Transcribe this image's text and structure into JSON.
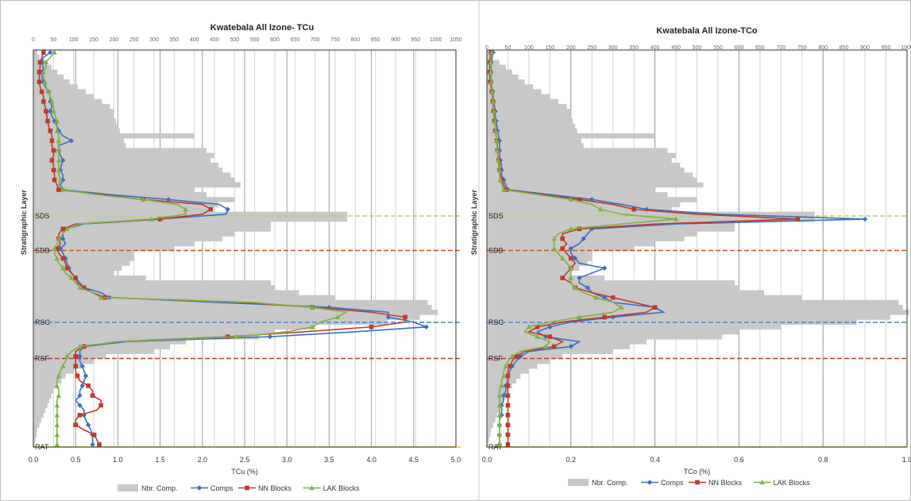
{
  "chart_data": [
    {
      "type": "line",
      "title": "Kwatebala All Izone- TCu",
      "xlabel": "TCu (%)",
      "ylabel": "Stratigraphic Layer",
      "xlim": [
        0.0,
        5.0
      ],
      "x_ticks": [
        "0.0",
        "0.5",
        "1.0",
        "1.5",
        "2.0",
        "2.5",
        "3.0",
        "3.5",
        "4.0",
        "4.5",
        "5.0"
      ],
      "x2lim": [
        0,
        1050
      ],
      "x2_ticks": [
        "0",
        "50",
        "100",
        "150",
        "200",
        "250",
        "300",
        "350",
        "400",
        "450",
        "500",
        "550",
        "600",
        "650",
        "700",
        "750",
        "800",
        "850",
        "900",
        "950",
        "1000",
        "1050"
      ],
      "grid": "vertical",
      "y_layers": [
        {
          "name": "SDS",
          "row": 0.418,
          "color": "#b5d36a"
        },
        {
          "name": "SDB",
          "row": 0.505,
          "color": "#c0501f"
        },
        {
          "name": "RSC",
          "row": 0.686,
          "color": "#4a7fd0"
        },
        {
          "name": "RSF",
          "row": 0.777,
          "color": "#c0392b"
        },
        {
          "name": "RAT",
          "row": 1.0,
          "color": "#f0c419"
        }
      ],
      "bars": {
        "name": "Nbr. Comp.",
        "color": "#c8c8c8",
        "values": [
          10,
          15,
          30,
          45,
          60,
          75,
          90,
          110,
          130,
          150,
          170,
          190,
          200,
          200,
          205,
          210,
          215,
          400,
          225,
          230,
          430,
          450,
          440,
          460,
          470,
          490,
          500,
          515,
          400,
          430,
          500,
          460,
          440,
          780,
          780,
          590,
          590,
          500,
          470,
          400,
          350,
          250,
          250,
          240,
          220,
          200,
          280,
          590,
          600,
          660,
          750,
          980,
          990,
          1005,
          960,
          880,
          700,
          600,
          560,
          380,
          340,
          300,
          180,
          150,
          120,
          100,
          80,
          70,
          60,
          50,
          45,
          40,
          35,
          30,
          25,
          20,
          15,
          10,
          8,
          5,
          3
        ]
      },
      "series": [
        {
          "name": "Comps",
          "color": "#3a6fc4",
          "marker": "diamond",
          "values": [
            0.2,
            0.12,
            0.1,
            0.12,
            0.1,
            0.1,
            0.12,
            0.14,
            0.18,
            0.2,
            0.2,
            0.22,
            0.2,
            0.22,
            0.25,
            0.28,
            0.3,
            0.35,
            0.45,
            0.3,
            0.3,
            0.32,
            0.35,
            0.33,
            0.32,
            0.35,
            0.35,
            0.32,
            0.35,
            0.9,
            1.6,
            2.2,
            2.3,
            2.28,
            1.5,
            0.6,
            0.38,
            0.35,
            0.35,
            0.38,
            0.32,
            0.35,
            0.38,
            0.4,
            0.42,
            0.45,
            0.5,
            0.55,
            0.6,
            0.8,
            0.9,
            2.2,
            3.5,
            4.2,
            4.2,
            4.5,
            4.65,
            3.8,
            2.8,
            1.1,
            0.6,
            0.55,
            0.55,
            0.55,
            0.58,
            0.6,
            0.62,
            0.6,
            0.58,
            0.55,
            0.55,
            0.5,
            0.55,
            0.6,
            0.6,
            0.62,
            0.65,
            0.68,
            0.7,
            0.7,
            0.7
          ]
        },
        {
          "name": "NN Blocks",
          "color": "#c0392b",
          "marker": "square",
          "values": [
            0.12,
            0.1,
            0.08,
            0.08,
            0.07,
            0.07,
            0.07,
            0.08,
            0.1,
            0.12,
            0.12,
            0.14,
            0.15,
            0.16,
            0.17,
            0.18,
            0.2,
            0.22,
            0.22,
            0.22,
            0.24,
            0.24,
            0.22,
            0.24,
            0.24,
            0.25,
            0.25,
            0.28,
            0.3,
            0.8,
            1.3,
            2.0,
            2.1,
            2.0,
            1.5,
            0.5,
            0.35,
            0.3,
            0.3,
            0.32,
            0.28,
            0.3,
            0.35,
            0.38,
            0.4,
            0.45,
            0.5,
            0.52,
            0.6,
            0.7,
            0.85,
            2.5,
            3.3,
            4.0,
            4.4,
            4.4,
            4.0,
            3.2,
            2.3,
            1.0,
            0.6,
            0.5,
            0.5,
            0.5,
            0.5,
            0.5,
            0.52,
            0.55,
            0.65,
            0.7,
            0.7,
            0.8,
            0.8,
            0.75,
            0.55,
            0.5,
            0.5,
            0.6,
            0.72,
            0.75,
            0.78
          ]
        },
        {
          "name": "LAK Blocks",
          "color": "#7fb241",
          "marker": "triangle",
          "values": [
            0.25,
            0.2,
            0.15,
            0.15,
            0.12,
            0.12,
            0.14,
            0.15,
            0.18,
            0.2,
            0.22,
            0.24,
            0.24,
            0.26,
            0.28,
            0.28,
            0.28,
            0.3,
            0.3,
            0.3,
            0.3,
            0.3,
            0.3,
            0.3,
            0.3,
            0.3,
            0.32,
            0.3,
            0.35,
            0.75,
            1.3,
            1.7,
            1.8,
            1.8,
            1.4,
            0.55,
            0.4,
            0.35,
            0.3,
            0.28,
            0.25,
            0.25,
            0.28,
            0.3,
            0.35,
            0.38,
            0.45,
            0.5,
            0.55,
            0.7,
            0.8,
            2.6,
            3.3,
            3.7,
            3.6,
            3.4,
            3.3,
            3.0,
            2.4,
            1.0,
            0.55,
            0.45,
            0.4,
            0.38,
            0.35,
            0.32,
            0.3,
            0.28,
            0.28,
            0.3,
            0.3,
            0.28,
            0.28,
            0.28,
            0.28,
            0.28,
            0.28,
            0.28,
            0.28,
            0.28,
            0.28
          ]
        }
      ],
      "legend": [
        "Nbr. Comp.",
        "Comps",
        "NN Blocks",
        "LAK Blocks"
      ],
      "legend_position": "bottom"
    },
    {
      "type": "line",
      "title": "Kwatebala All Izone-TCo",
      "xlabel": "TCo (%)",
      "ylabel": "Stratigraphic Layer",
      "xlim": [
        0.0,
        1.0
      ],
      "x_ticks": [
        "0.0",
        "0.2",
        "0.4",
        "0.6",
        "0.8",
        "1.0"
      ],
      "x2lim": [
        0,
        1000
      ],
      "x2_ticks": [
        "0",
        "50",
        "100",
        "150",
        "200",
        "250",
        "300",
        "350",
        "400",
        "450",
        "500",
        "550",
        "600",
        "650",
        "700",
        "750",
        "800",
        "850",
        "900",
        "950",
        "1000"
      ],
      "grid": "vertical",
      "y_layers": [
        {
          "name": "SDS",
          "row": 0.418,
          "color": "#b5d36a"
        },
        {
          "name": "SDB",
          "row": 0.505,
          "color": "#c0501f"
        },
        {
          "name": "RSC",
          "row": 0.686,
          "color": "#4a7fd0"
        },
        {
          "name": "RSF",
          "row": 0.777,
          "color": "#c0392b"
        },
        {
          "name": "RAT",
          "row": 1.0,
          "color": "#f0c419"
        }
      ],
      "bars": {
        "name": "Nbr. Comp.",
        "color": "#c8c8c8",
        "values": [
          10,
          15,
          30,
          45,
          60,
          75,
          90,
          110,
          130,
          150,
          170,
          190,
          200,
          200,
          205,
          210,
          215,
          400,
          225,
          230,
          430,
          450,
          440,
          460,
          470,
          490,
          500,
          515,
          400,
          430,
          500,
          460,
          440,
          780,
          780,
          590,
          590,
          500,
          470,
          400,
          350,
          250,
          250,
          240,
          220,
          200,
          280,
          590,
          600,
          660,
          750,
          980,
          990,
          1005,
          960,
          880,
          700,
          600,
          560,
          380,
          340,
          300,
          180,
          150,
          120,
          100,
          80,
          70,
          60,
          50,
          45,
          40,
          35,
          30,
          25,
          20,
          15,
          10,
          8,
          5,
          3
        ]
      },
      "series": [
        {
          "name": "Comps",
          "color": "#3a6fc4",
          "marker": "diamond",
          "values": [
            0.015,
            0.012,
            0.01,
            0.01,
            0.01,
            0.01,
            0.01,
            0.012,
            0.014,
            0.015,
            0.016,
            0.018,
            0.02,
            0.02,
            0.022,
            0.024,
            0.025,
            0.028,
            0.03,
            0.03,
            0.03,
            0.03,
            0.032,
            0.035,
            0.035,
            0.035,
            0.04,
            0.045,
            0.05,
            0.15,
            0.25,
            0.32,
            0.38,
            0.55,
            0.9,
            0.45,
            0.25,
            0.24,
            0.23,
            0.22,
            0.2,
            0.2,
            0.21,
            0.22,
            0.28,
            0.25,
            0.22,
            0.22,
            0.24,
            0.25,
            0.28,
            0.3,
            0.4,
            0.42,
            0.3,
            0.2,
            0.15,
            0.12,
            0.14,
            0.22,
            0.2,
            0.1,
            0.08,
            0.07,
            0.06,
            0.055,
            0.05,
            0.05,
            0.045,
            0.045,
            0.04,
            0.04,
            0.035,
            0.035,
            0.035,
            0.03,
            0.03,
            0.03,
            0.03,
            0.03,
            0.03
          ]
        },
        {
          "name": "NN Blocks",
          "color": "#c0392b",
          "marker": "square",
          "values": [
            0.01,
            0.008,
            0.007,
            0.007,
            0.007,
            0.007,
            0.008,
            0.01,
            0.012,
            0.013,
            0.014,
            0.015,
            0.016,
            0.017,
            0.018,
            0.02,
            0.02,
            0.022,
            0.024,
            0.025,
            0.025,
            0.026,
            0.028,
            0.03,
            0.03,
            0.032,
            0.035,
            0.04,
            0.045,
            0.13,
            0.22,
            0.3,
            0.35,
            0.5,
            0.74,
            0.4,
            0.22,
            0.18,
            0.18,
            0.19,
            0.18,
            0.19,
            0.2,
            0.21,
            0.2,
            0.19,
            0.18,
            0.2,
            0.21,
            0.25,
            0.3,
            0.35,
            0.4,
            0.38,
            0.28,
            0.18,
            0.12,
            0.1,
            0.15,
            0.18,
            0.16,
            0.09,
            0.07,
            0.06,
            0.055,
            0.05,
            0.05,
            0.05,
            0.05,
            0.05,
            0.05,
            0.05,
            0.05,
            0.05,
            0.05,
            0.05,
            0.05,
            0.05,
            0.05,
            0.05,
            0.05
          ]
        },
        {
          "name": "LAK Blocks",
          "color": "#7fb241",
          "marker": "triangle",
          "values": [
            0.012,
            0.01,
            0.009,
            0.009,
            0.009,
            0.009,
            0.01,
            0.012,
            0.013,
            0.014,
            0.015,
            0.016,
            0.017,
            0.018,
            0.019,
            0.02,
            0.021,
            0.022,
            0.023,
            0.024,
            0.025,
            0.026,
            0.027,
            0.028,
            0.03,
            0.03,
            0.032,
            0.036,
            0.04,
            0.12,
            0.2,
            0.25,
            0.27,
            0.32,
            0.45,
            0.32,
            0.2,
            0.17,
            0.16,
            0.16,
            0.16,
            0.17,
            0.18,
            0.19,
            0.2,
            0.2,
            0.2,
            0.2,
            0.21,
            0.23,
            0.26,
            0.3,
            0.32,
            0.3,
            0.22,
            0.15,
            0.1,
            0.09,
            0.12,
            0.15,
            0.14,
            0.08,
            0.06,
            0.05,
            0.045,
            0.04,
            0.04,
            0.035,
            0.035,
            0.03,
            0.03,
            0.03,
            0.03,
            0.03,
            0.03,
            0.03,
            0.03,
            0.03,
            0.03,
            0.03,
            0.03
          ]
        }
      ],
      "legend": [
        "Nbr. Comp.",
        "Comps",
        "NN Blocks",
        "LAK Blocks"
      ],
      "legend_position": "bottom"
    }
  ]
}
